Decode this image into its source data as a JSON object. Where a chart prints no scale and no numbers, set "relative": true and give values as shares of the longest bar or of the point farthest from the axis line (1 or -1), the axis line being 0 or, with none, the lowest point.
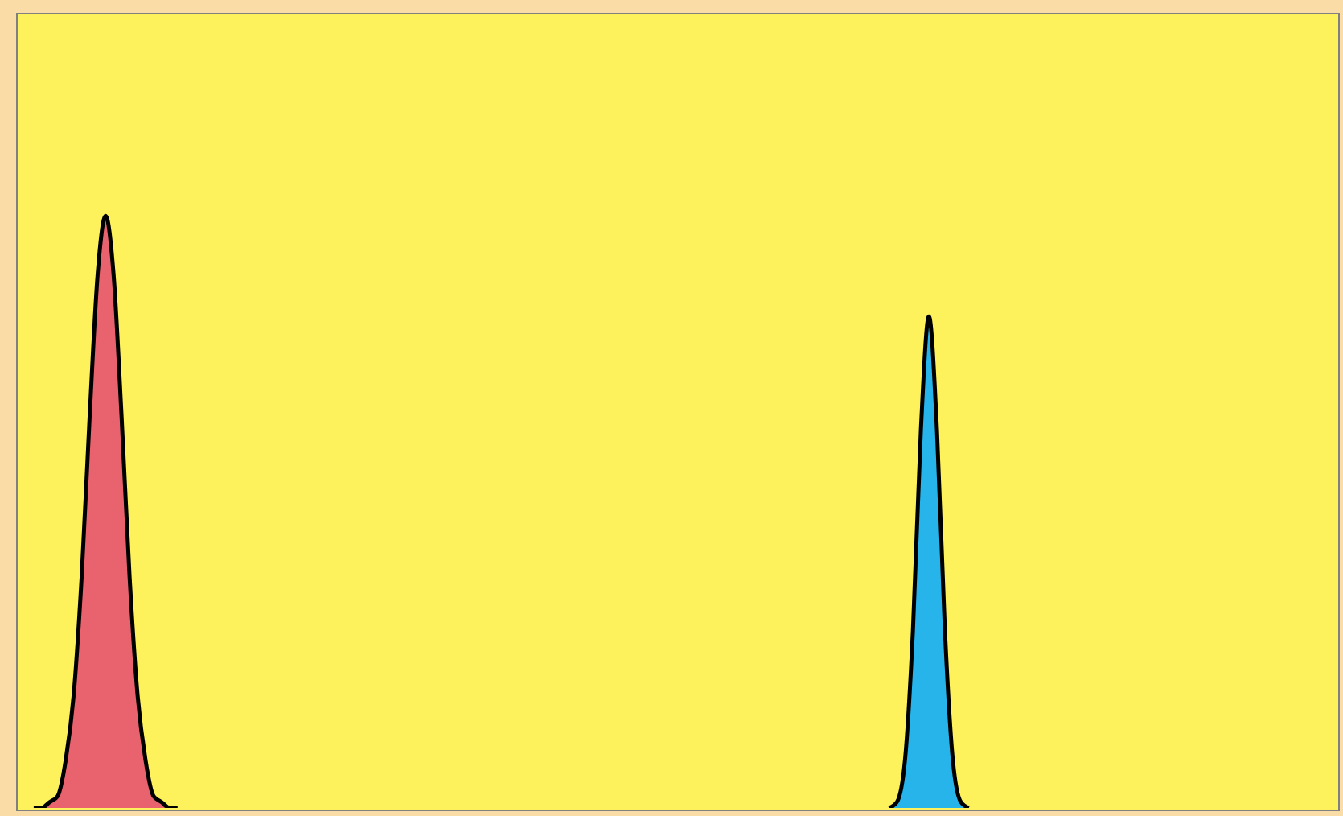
{
  "chart_data": {
    "type": "area",
    "relative": true,
    "categories": [
      null,
      null,
      null,
      null,
      null,
      null,
      null,
      null,
      null,
      null,
      null,
      null,
      null,
      null,
      null,
      null,
      null,
      null,
      null,
      null,
      null,
      null,
      null,
      null,
      null,
      null,
      null,
      null,
      null,
      null,
      null,
      null,
      null,
      null,
      null,
      null,
      null,
      null,
      null,
      null,
      null,
      null,
      null,
      null,
      null,
      null,
      null,
      null,
      null,
      null,
      null,
      null,
      null,
      null,
      null,
      null,
      null,
      null,
      null,
      null,
      null,
      null,
      null,
      null,
      null,
      null,
      null,
      null,
      null,
      null,
      null,
      null,
      null,
      null,
      null,
      null,
      null,
      null,
      null,
      null,
      null,
      null,
      null,
      null,
      null,
      null,
      null,
      null,
      null,
      null,
      null,
      null,
      null,
      null,
      null,
      null,
      null,
      null,
      null,
      null,
      null,
      null,
      null,
      null,
      null,
      null,
      null,
      null,
      null,
      null,
      null,
      null,
      null,
      null,
      null,
      null,
      null,
      null,
      null,
      null,
      null,
      null,
      null,
      null,
      null,
      null,
      null,
      null,
      null,
      null,
      null,
      null,
      null,
      null,
      null,
      null,
      null,
      null,
      null,
      null,
      null,
      null,
      null,
      null,
      null,
      null,
      null,
      null,
      null,
      null,
      null,
      null,
      null,
      null,
      null,
      null,
      null,
      null,
      null,
      null,
      null,
      null,
      null,
      null,
      null,
      null
    ],
    "series": [
      {
        "color": "#e8636e",
        "values": [
          null,
          null,
          0,
          0,
          0.01,
          0.02,
          0.08,
          0.19,
          0.39,
          0.66,
          0.9,
          1,
          0.9,
          0.66,
          0.39,
          0.19,
          0.08,
          0.02,
          0.01,
          0,
          0,
          null,
          null,
          null,
          null,
          null,
          null,
          null,
          null,
          null,
          null,
          null,
          null,
          null,
          null,
          null,
          null,
          null,
          null,
          null,
          null,
          null,
          null,
          null,
          null,
          null,
          null,
          null,
          null,
          null,
          null,
          null,
          null,
          null,
          null,
          null,
          null,
          null,
          null,
          null,
          null,
          null,
          null,
          null,
          null,
          null,
          null,
          null,
          null,
          null,
          null,
          null,
          null,
          null,
          null,
          null,
          null,
          null,
          null,
          null,
          null,
          null,
          null,
          null,
          null,
          null,
          null,
          null,
          null,
          null,
          null,
          null,
          null,
          null,
          null,
          null,
          null,
          null,
          null,
          null,
          null,
          null,
          null,
          null,
          null,
          null,
          null,
          null,
          null,
          null,
          null,
          null,
          null,
          null,
          null,
          null,
          null,
          null,
          null,
          null,
          null,
          null,
          null,
          null,
          null,
          null,
          null,
          null,
          null,
          null,
          null,
          null,
          null,
          null,
          null,
          null,
          null,
          null,
          null,
          null,
          null,
          null,
          null,
          null,
          null,
          null,
          null,
          null,
          null,
          null,
          null,
          null,
          null,
          null,
          null,
          null,
          null,
          null,
          null,
          null,
          null,
          null,
          null,
          null,
          null,
          null
        ]
      },
      {
        "color": "#27b4ea",
        "values": [
          null,
          null,
          null,
          null,
          null,
          null,
          null,
          null,
          null,
          null,
          null,
          null,
          null,
          null,
          null,
          null,
          null,
          null,
          null,
          null,
          null,
          null,
          null,
          null,
          null,
          null,
          null,
          null,
          null,
          null,
          null,
          null,
          null,
          null,
          null,
          null,
          null,
          null,
          null,
          null,
          null,
          null,
          null,
          null,
          null,
          null,
          null,
          null,
          null,
          null,
          null,
          null,
          null,
          null,
          null,
          null,
          null,
          null,
          null,
          null,
          null,
          null,
          null,
          null,
          null,
          null,
          null,
          null,
          null,
          null,
          null,
          null,
          null,
          null,
          null,
          null,
          null,
          null,
          null,
          null,
          null,
          null,
          null,
          null,
          null,
          null,
          null,
          null,
          null,
          null,
          null,
          null,
          null,
          null,
          null,
          null,
          null,
          null,
          null,
          null,
          null,
          null,
          null,
          null,
          null,
          null,
          null,
          null,
          null,
          0,
          0.01,
          0.08,
          0.3,
          0.64,
          0.83,
          0.64,
          0.3,
          0.08,
          0.01,
          0,
          null,
          null,
          null,
          null,
          null,
          null,
          null,
          null,
          null,
          null,
          null,
          null,
          null,
          null,
          null,
          null,
          null,
          null,
          null,
          null,
          null,
          null,
          null,
          null,
          null,
          null,
          null,
          null,
          null,
          null,
          null,
          null,
          null,
          null,
          null,
          null,
          null,
          null,
          null,
          null,
          null,
          null,
          null,
          null,
          null,
          null
        ]
      }
    ]
  }
}
